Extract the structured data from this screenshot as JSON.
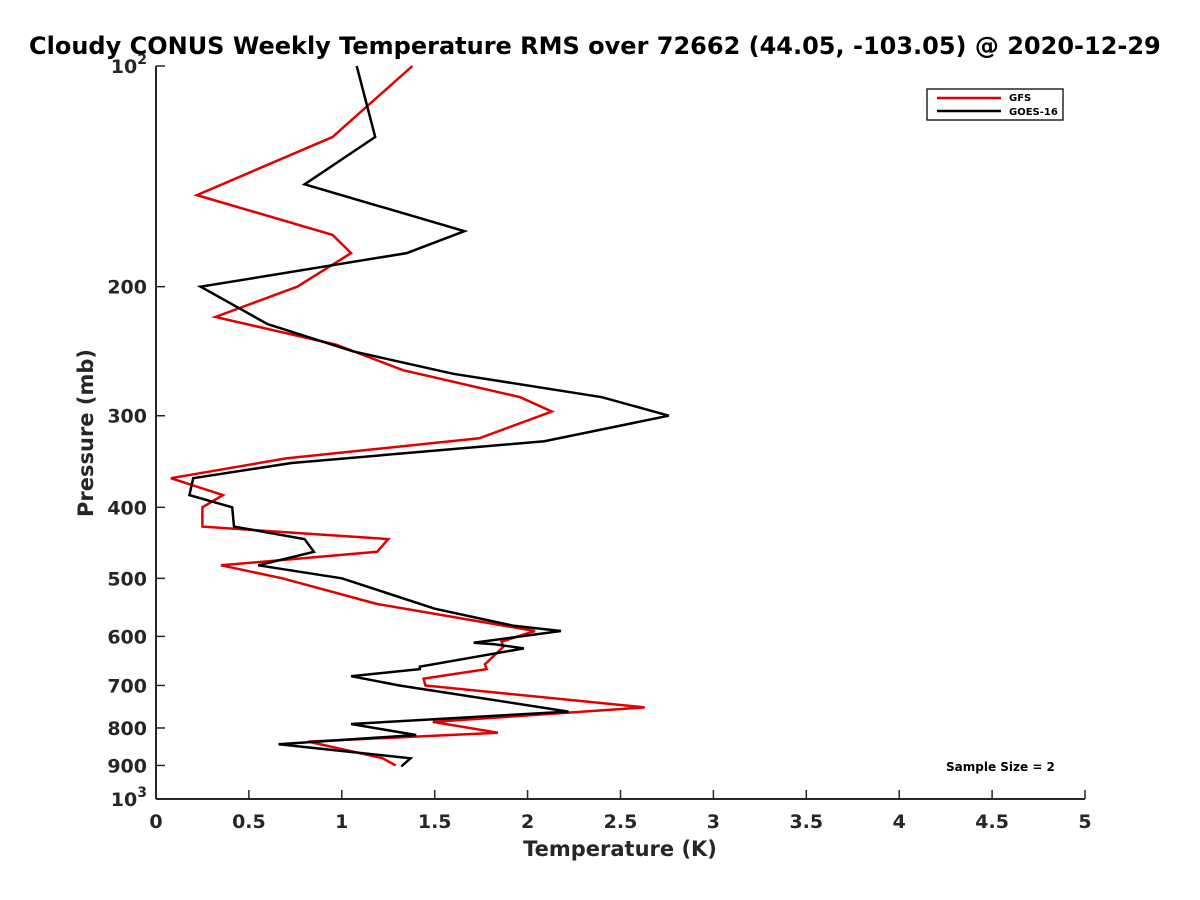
{
  "chart_data": {
    "type": "line",
    "title": "Cloudy CONUS Weekly Temperature RMS over 72662 (44.05, -103.05) @ 2020-12-29",
    "xlabel": "Temperature (K)",
    "ylabel": "Pressure (mb)",
    "xlim": [
      0,
      5
    ],
    "ylim": [
      100,
      1000
    ],
    "y_scale": "log",
    "y_reversed": true,
    "grid": false,
    "legend_position": "top-right",
    "x_ticks": [
      "0",
      "0.5",
      "1",
      "1.5",
      "2",
      "2.5",
      "3",
      "3.5",
      "4",
      "4.5",
      "5"
    ],
    "y_ticks": [
      {
        "value": 100,
        "base": "10",
        "exp": "2"
      },
      {
        "value": 200,
        "label": "200"
      },
      {
        "value": 300,
        "label": "300"
      },
      {
        "value": 400,
        "label": "400"
      },
      {
        "value": 500,
        "label": "500"
      },
      {
        "value": 600,
        "label": "600"
      },
      {
        "value": 700,
        "label": "700"
      },
      {
        "value": 800,
        "label": "800"
      },
      {
        "value": 900,
        "label": "900"
      },
      {
        "value": 1000,
        "base": "10",
        "exp": "3"
      }
    ],
    "annotation": "Sample Size = 2",
    "series": [
      {
        "name": "GFS",
        "color": "#e00000",
        "points": [
          [
            1.38,
            100
          ],
          [
            0.95,
            125
          ],
          [
            0.22,
            150
          ],
          [
            0.95,
            170
          ],
          [
            1.05,
            180
          ],
          [
            0.76,
            200
          ],
          [
            0.32,
            220
          ],
          [
            0.97,
            240
          ],
          [
            1.33,
            260
          ],
          [
            1.96,
            283
          ],
          [
            2.13,
            296
          ],
          [
            1.74,
            322
          ],
          [
            0.7,
            343
          ],
          [
            0.08,
            365
          ],
          [
            0.36,
            385
          ],
          [
            0.25,
            400
          ],
          [
            0.25,
            425
          ],
          [
            1.25,
            442
          ],
          [
            1.19,
            460
          ],
          [
            0.35,
            480
          ],
          [
            0.68,
            500
          ],
          [
            1.19,
            542
          ],
          [
            2.04,
            590
          ],
          [
            1.86,
            610
          ],
          [
            1.87,
            620
          ],
          [
            1.77,
            655
          ],
          [
            1.78,
            665
          ],
          [
            1.44,
            685
          ],
          [
            1.45,
            700
          ],
          [
            2.63,
            750
          ],
          [
            1.49,
            785
          ],
          [
            1.84,
            812
          ],
          [
            0.82,
            835
          ],
          [
            1.22,
            880
          ],
          [
            1.29,
            900
          ]
        ]
      },
      {
        "name": "GOES-16",
        "color": "#000000",
        "points": [
          [
            1.08,
            100
          ],
          [
            1.18,
            125
          ],
          [
            0.8,
            145
          ],
          [
            1.66,
            168
          ],
          [
            1.35,
            180
          ],
          [
            0.24,
            200
          ],
          [
            0.6,
            225
          ],
          [
            1.06,
            245
          ],
          [
            1.6,
            263
          ],
          [
            2.4,
            283
          ],
          [
            2.76,
            300
          ],
          [
            2.09,
            325
          ],
          [
            0.73,
            348
          ],
          [
            0.2,
            365
          ],
          [
            0.18,
            385
          ],
          [
            0.41,
            400
          ],
          [
            0.42,
            425
          ],
          [
            0.8,
            442
          ],
          [
            0.85,
            460
          ],
          [
            0.55,
            480
          ],
          [
            1.0,
            500
          ],
          [
            1.5,
            550
          ],
          [
            1.92,
            580
          ],
          [
            2.18,
            590
          ],
          [
            1.71,
            612
          ],
          [
            1.82,
            615
          ],
          [
            1.98,
            623
          ],
          [
            1.42,
            660
          ],
          [
            1.42,
            665
          ],
          [
            1.05,
            680
          ],
          [
            1.31,
            700
          ],
          [
            2.22,
            760
          ],
          [
            1.05,
            790
          ],
          [
            1.4,
            818
          ],
          [
            0.66,
            842
          ],
          [
            1.37,
            880
          ],
          [
            1.32,
            903
          ]
        ]
      }
    ]
  }
}
